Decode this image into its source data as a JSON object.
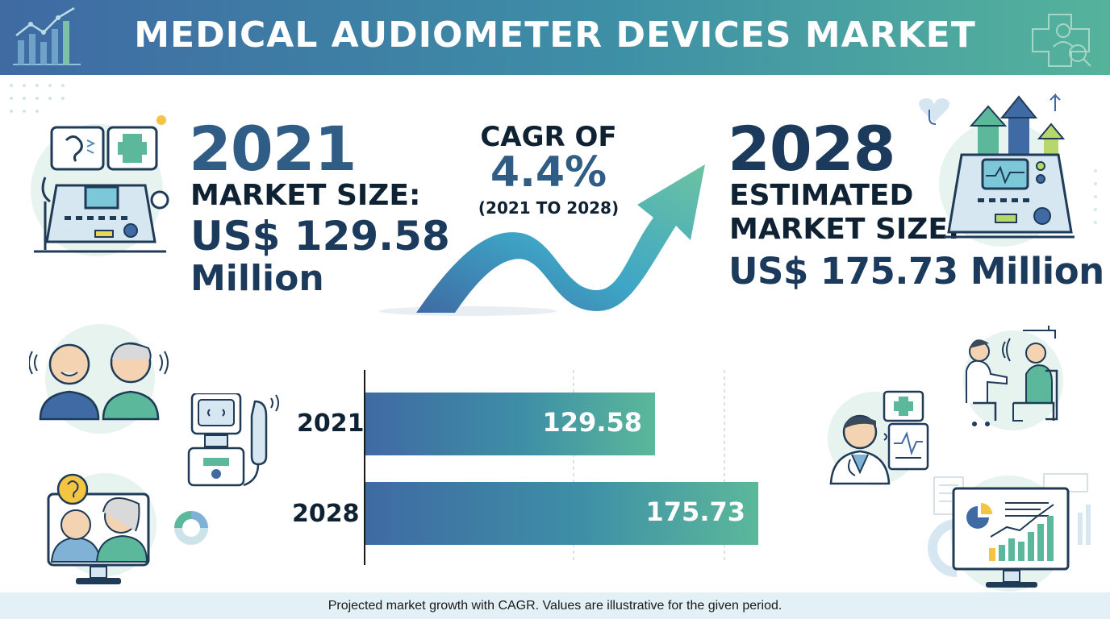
{
  "header": {
    "title": "MEDICAL AUDIOMETER DEVICES MARKET"
  },
  "left_stat": {
    "year": "2021",
    "label": "MARKET SIZE:",
    "value_line1": "US$ 129.58",
    "value_line2": "Million"
  },
  "cagr": {
    "heading": "CAGR OF",
    "value": "4.4%",
    "period": "(2021 TO 2028)"
  },
  "right_stat": {
    "year": "2028",
    "label_line1": "ESTIMATED",
    "label_line2": "MARKET SIZE:",
    "value": "US$ 175.73 Million"
  },
  "chart_data": {
    "type": "bar",
    "orientation": "horizontal",
    "categories": [
      "2021",
      "2028"
    ],
    "values": [
      129.58,
      175.73
    ],
    "value_labels": [
      "129.58",
      "175.73"
    ],
    "xlim": [
      0,
      190
    ],
    "grid": true
  },
  "footer": {
    "note": "Projected market growth with CAGR. Values are illustrative for the given period."
  },
  "colors": {
    "gradient_start": "#3f6aa3",
    "gradient_mid": "#3e8fa6",
    "gradient_end": "#5bb89a",
    "navy": "#1b3a5c",
    "steel_blue": "#2f5d86"
  },
  "icons": [
    "growth-chart-icon",
    "medical-cross-icon",
    "audiometer-device-icon",
    "elderly-couple-icon",
    "handheld-audiometer-icon",
    "video-consultation-icon",
    "doctor-icon",
    "clinician-patient-icon",
    "analytics-monitor-icon",
    "heart-stethoscope-icon",
    "growth-arrows-icon"
  ]
}
